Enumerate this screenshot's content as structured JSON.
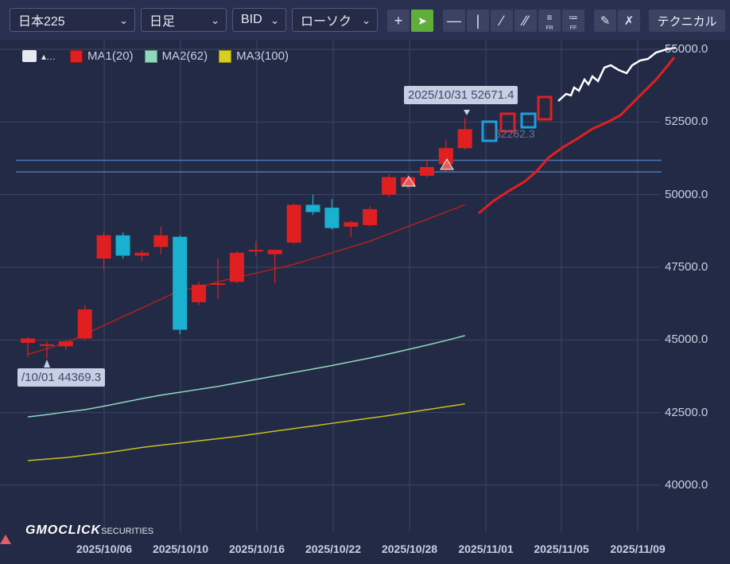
{
  "toolbar": {
    "symbol": "日本225",
    "timeframe": "日足",
    "price_type": "BID",
    "chart_style": "ローソク",
    "technical_label": "テクニカル",
    "fr_label": "FR",
    "ff_label": "FF"
  },
  "legend": [
    {
      "label": "MA1(20)",
      "color": "#e02020"
    },
    {
      "label": "MA2(62)",
      "color": "#8fd8c0"
    },
    {
      "label": "MA3(100)",
      "color": "#d8d020"
    }
  ],
  "y_axis": [
    "55000.0",
    "52500.0",
    "50000.0",
    "47500.0",
    "45000.0",
    "42500.0",
    "40000.0"
  ],
  "x_axis": [
    "2025/10/06",
    "2025/10/10",
    "2025/10/16",
    "2025/10/22",
    "2025/10/28",
    "2025/11/01",
    "2025/11/05",
    "2025/11/09"
  ],
  "tooltips": {
    "high": "2025/10/31 52671.4",
    "low": "/10/01 44369.3",
    "faint_price": "52262.3"
  },
  "brand": {
    "name": "GMOCLICK",
    "suffix": "SECURITIES"
  },
  "colors": {
    "up": "#e02020",
    "down": "#1ab0d0",
    "background": "#232a45"
  },
  "chart_data": {
    "type": "candlestick",
    "ylim": [
      39000,
      55500
    ],
    "candles": [
      {
        "o": 44900,
        "h": 45100,
        "l": 44400,
        "c": 45050
      },
      {
        "o": 44850,
        "h": 44950,
        "l": 44370,
        "c": 44850
      },
      {
        "o": 44780,
        "h": 45000,
        "l": 44650,
        "c": 44950
      },
      {
        "o": 45050,
        "h": 46200,
        "l": 45000,
        "c": 46050
      },
      {
        "o": 47800,
        "h": 48700,
        "l": 47400,
        "c": 48600
      },
      {
        "o": 48600,
        "h": 48700,
        "l": 47800,
        "c": 47900
      },
      {
        "o": 47900,
        "h": 48100,
        "l": 47700,
        "c": 48000
      },
      {
        "o": 48200,
        "h": 48900,
        "l": 47950,
        "c": 48600
      },
      {
        "o": 48550,
        "h": 48600,
        "l": 45200,
        "c": 45350
      },
      {
        "o": 46300,
        "h": 47000,
        "l": 46200,
        "c": 46900
      },
      {
        "o": 46900,
        "h": 47800,
        "l": 46400,
        "c": 46950
      },
      {
        "o": 47000,
        "h": 48050,
        "l": 46950,
        "c": 48000
      },
      {
        "o": 48050,
        "h": 48400,
        "l": 47900,
        "c": 48100
      },
      {
        "o": 47950,
        "h": 48100,
        "l": 46950,
        "c": 48100
      },
      {
        "o": 48350,
        "h": 49700,
        "l": 48300,
        "c": 49650
      },
      {
        "o": 49650,
        "h": 50000,
        "l": 49300,
        "c": 49400
      },
      {
        "o": 49550,
        "h": 49850,
        "l": 48800,
        "c": 48850
      },
      {
        "o": 48900,
        "h": 49100,
        "l": 48550,
        "c": 49050
      },
      {
        "o": 48950,
        "h": 49600,
        "l": 48900,
        "c": 49500
      },
      {
        "o": 50000,
        "h": 50700,
        "l": 49900,
        "c": 50600
      },
      {
        "o": 50300,
        "h": 50700,
        "l": 50200,
        "c": 50600
      },
      {
        "o": 50650,
        "h": 51200,
        "l": 50600,
        "c": 50950
      },
      {
        "o": 51050,
        "h": 51900,
        "l": 50800,
        "c": 51600
      },
      {
        "o": 51600,
        "h": 52650,
        "l": 51550,
        "c": 52250
      }
    ],
    "ma1": [
      44500,
      44700,
      44900,
      45200,
      45500,
      45800,
      46100,
      46400,
      46700,
      46800,
      47000,
      47150,
      47300,
      47450,
      47600,
      47800,
      48000,
      48200,
      48400,
      48650,
      48900,
      49150,
      49400,
      49650
    ],
    "ma2": [
      42350,
      42430,
      42520,
      42600,
      42720,
      42850,
      42980,
      43100,
      43200,
      43300,
      43400,
      43520,
      43640,
      43760,
      43880,
      44000,
      44120,
      44250,
      44380,
      44520,
      44670,
      44820,
      44980,
      45150
    ],
    "ma3": [
      40850,
      40900,
      40950,
      41030,
      41110,
      41200,
      41300,
      41380,
      41450,
      41530,
      41600,
      41680,
      41770,
      41860,
      41950,
      42040,
      42130,
      42220,
      42310,
      42400,
      42500,
      42600,
      42700,
      42800
    ],
    "hlines": [
      51180,
      50780
    ]
  }
}
